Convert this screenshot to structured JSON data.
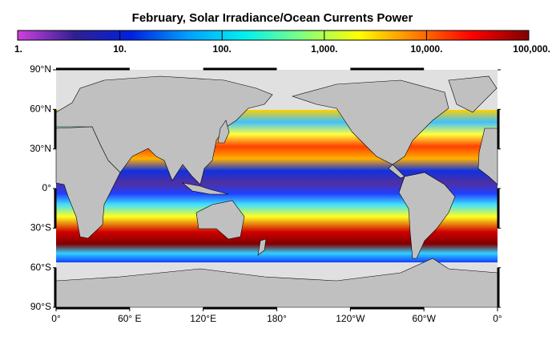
{
  "title": "February, Solar Irradiance/Ocean Currents Power",
  "colorbar": {
    "scale": "log",
    "lim": [
      1,
      100000
    ],
    "colormap": [
      "#d040e0",
      "#302090",
      "#0020e0",
      "#00a0ff",
      "#00f0f0",
      "#80ff80",
      "#ffff00",
      "#ff8000",
      "#ff0000",
      "#800000"
    ],
    "ticks": [
      {
        "value": 1,
        "label": "1."
      },
      {
        "value": 10,
        "label": "10."
      },
      {
        "value": 100,
        "label": "100."
      },
      {
        "value": 1000,
        "label": "1,000."
      },
      {
        "value": 10000,
        "label": "10,000."
      },
      {
        "value": 100000,
        "label": "100,000."
      }
    ]
  },
  "lat_lim": [
    -90,
    90
  ],
  "lat_ticks": [
    {
      "value": 90,
      "label": "90°N"
    },
    {
      "value": 60,
      "label": "60°N"
    },
    {
      "value": 30,
      "label": "30°N"
    },
    {
      "value": 0,
      "label": "0°"
    },
    {
      "value": -30,
      "label": "30°S"
    },
    {
      "value": -60,
      "label": "60°S"
    },
    {
      "value": -90,
      "label": "90°S"
    }
  ],
  "lon_lim": [
    0,
    360
  ],
  "lon_ticks": [
    {
      "value": 0,
      "label": "0°"
    },
    {
      "value": 60,
      "label": "60° E"
    },
    {
      "value": 120,
      "label": "120°E"
    },
    {
      "value": 180,
      "label": "180°"
    },
    {
      "value": 240,
      "label": "120°W"
    },
    {
      "value": 300,
      "label": "60°W"
    },
    {
      "value": 360,
      "label": "0°"
    }
  ]
}
